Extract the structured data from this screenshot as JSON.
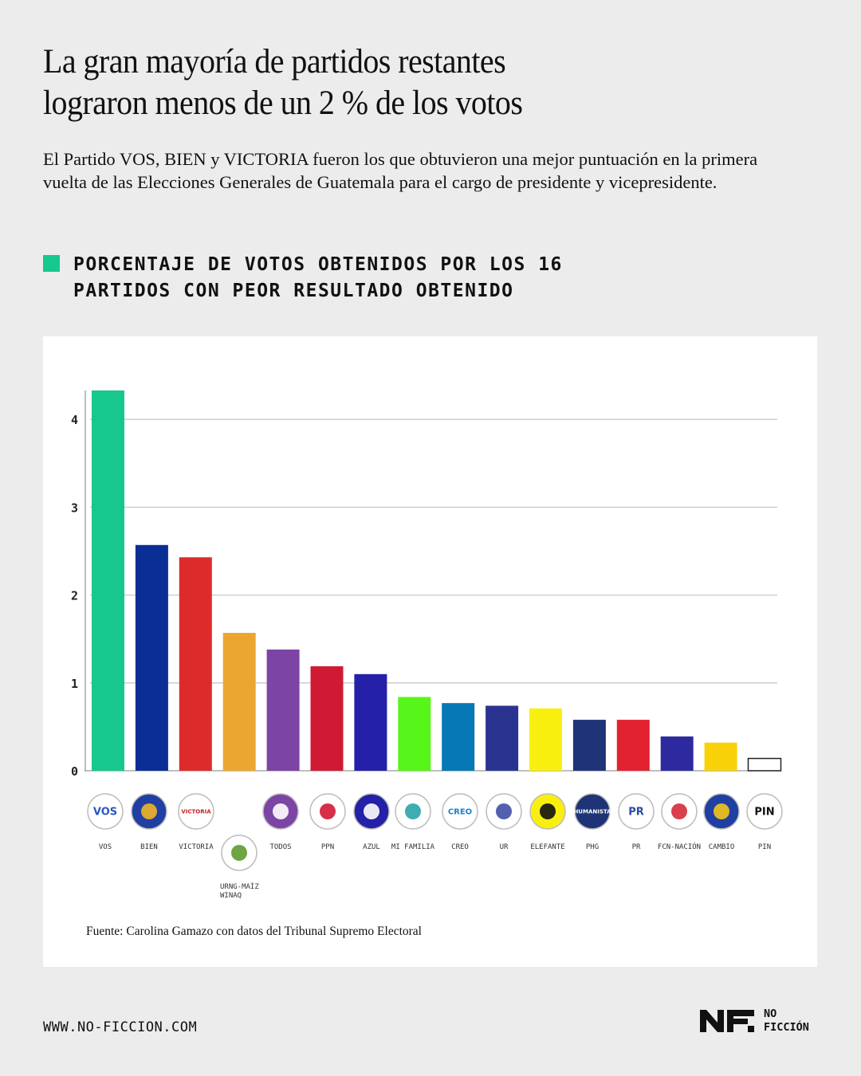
{
  "header": {
    "title_lines": [
      "La gran mayoría de partidos restantes",
      "lograron menos de un 2 % de los votos"
    ],
    "subtitle": "El Partido VOS, BIEN y VICTORIA fueron los que obtuvieron una mejor puntuación en la primera vuelta de las Elecciones Generales de Guatemala para el cargo de presidente y vicepresidente."
  },
  "chart_heading": {
    "lines": [
      "PORCENTAJE DE VOTOS OBTENIDOS POR LOS 16",
      "PARTIDOS CON PEOR RESULTADO OBTENIDO"
    ],
    "accent_color": "#16c78e"
  },
  "chart_data": {
    "type": "bar",
    "title": "PORCENTAJE DE VOTOS OBTENIDOS POR LOS 16 PARTIDOS CON PEOR RESULTADO OBTENIDO",
    "categories": [
      "VOS",
      "BIEN",
      "VICTORIA",
      "URNG-MAÍZ WINAQ",
      "TODOS",
      "PPN",
      "AZUL",
      "MI FAMILIA",
      "CREO",
      "UR",
      "ELEFANTE",
      "PHG",
      "PR",
      "FCN-NACIÓN",
      "CAMBIO",
      "PIN"
    ],
    "values": [
      4.33,
      2.57,
      2.43,
      1.57,
      1.38,
      1.19,
      1.1,
      0.84,
      0.77,
      0.74,
      0.71,
      0.58,
      0.58,
      0.39,
      0.32,
      0.14
    ],
    "colors": [
      "#16c78e",
      "#0b2e94",
      "#dd2b2b",
      "#eba631",
      "#7b44a5",
      "#d01a34",
      "#2420a7",
      "#58f51a",
      "#0678b6",
      "#2a3490",
      "#f9ef0f",
      "#1e3476",
      "#e22231",
      "#2d2a9f",
      "#f9d108",
      "#ffffff"
    ],
    "yticks": [
      0,
      1,
      2,
      3,
      4
    ],
    "ylim": [
      0,
      4.33
    ],
    "xlabel": "",
    "ylabel": "",
    "grid": true,
    "logos": [
      {
        "text": "VOS",
        "bg": "#ffffff",
        "fg": "#2a56c6"
      },
      {
        "text": "",
        "bg": "#1f3fa3",
        "fg": "#f2b227"
      },
      {
        "text": "VICTORIA",
        "bg": "#ffffff",
        "fg": "#c7211f"
      },
      {
        "text": "",
        "bg": "#ffffff",
        "fg": "#5e9a2f"
      },
      {
        "text": "",
        "bg": "#7b44a5",
        "fg": "#ffffff"
      },
      {
        "text": "",
        "bg": "#ffffff",
        "fg": "#d01a34"
      },
      {
        "text": "",
        "bg": "#2420a7",
        "fg": "#ffffff"
      },
      {
        "text": "",
        "bg": "#ffffff",
        "fg": "#2aa3a8"
      },
      {
        "text": "CREO",
        "bg": "#ffffff",
        "fg": "#1a82c9"
      },
      {
        "text": "",
        "bg": "#ffffff",
        "fg": "#4050a3"
      },
      {
        "text": "",
        "bg": "#f9ef0f",
        "fg": "#111111"
      },
      {
        "text": "HUMANISTA",
        "bg": "#1e3476",
        "fg": "#ffffff"
      },
      {
        "text": "PR",
        "bg": "#ffffff",
        "fg": "#2a4aa8"
      },
      {
        "text": "",
        "bg": "#ffffff",
        "fg": "#d42b3b"
      },
      {
        "text": "",
        "bg": "#1f3fa3",
        "fg": "#f5c518"
      },
      {
        "text": "PIN",
        "bg": "#ffffff",
        "fg": "#111111"
      }
    ]
  },
  "source": "Fuente: Carolina Gamazo con datos del Tribunal Supremo Electoral",
  "footer": {
    "url": "WWW.NO-FICCION.COM",
    "brand_lines": [
      "NO",
      "FICCIÓN"
    ]
  }
}
